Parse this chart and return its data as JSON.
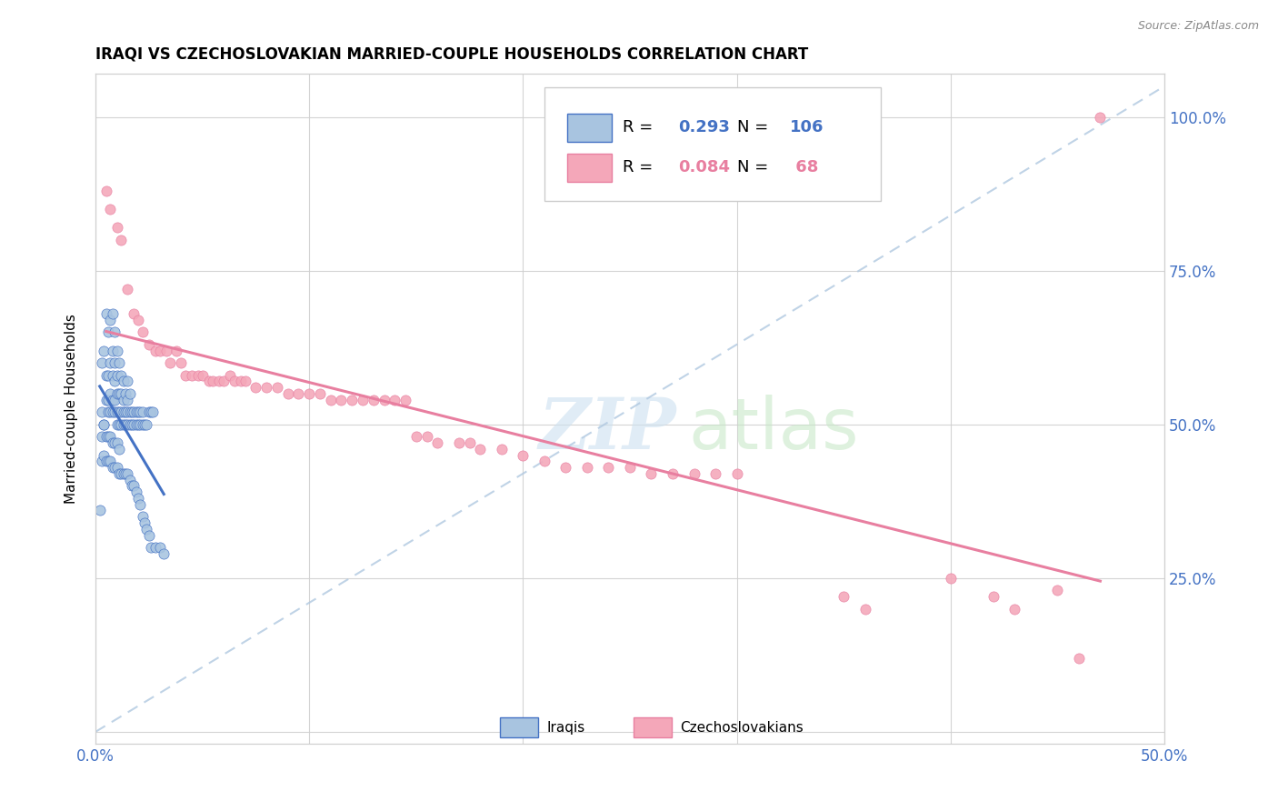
{
  "title": "IRAQI VS CZECHOSLOVAKIAN MARRIED-COUPLE HOUSEHOLDS CORRELATION CHART",
  "source": "Source: ZipAtlas.com",
  "ylabel": "Married-couple Households",
  "xlim": [
    0.0,
    0.5
  ],
  "ylim": [
    -0.02,
    1.07
  ],
  "R_iraqis": 0.293,
  "N_iraqis": 106,
  "R_czech": 0.084,
  "N_czech": 68,
  "color_iraqis": "#a8c4e0",
  "color_czech": "#f4a7b9",
  "line_color_iraqis": "#4472c4",
  "line_color_czech": "#e87fa0",
  "line_color_diagonal": "#b0c8e0",
  "iraqis_x": [
    0.002,
    0.003,
    0.003,
    0.004,
    0.004,
    0.005,
    0.005,
    0.005,
    0.006,
    0.006,
    0.006,
    0.006,
    0.007,
    0.007,
    0.007,
    0.007,
    0.008,
    0.008,
    0.008,
    0.008,
    0.008,
    0.009,
    0.009,
    0.009,
    0.009,
    0.009,
    0.01,
    0.01,
    0.01,
    0.01,
    0.01,
    0.011,
    0.011,
    0.011,
    0.011,
    0.012,
    0.012,
    0.012,
    0.012,
    0.013,
    0.013,
    0.013,
    0.013,
    0.014,
    0.014,
    0.014,
    0.015,
    0.015,
    0.015,
    0.015,
    0.016,
    0.016,
    0.016,
    0.017,
    0.017,
    0.018,
    0.018,
    0.019,
    0.019,
    0.02,
    0.02,
    0.021,
    0.021,
    0.022,
    0.022,
    0.023,
    0.024,
    0.025,
    0.026,
    0.027,
    0.003,
    0.003,
    0.004,
    0.004,
    0.005,
    0.005,
    0.006,
    0.006,
    0.007,
    0.007,
    0.008,
    0.008,
    0.009,
    0.009,
    0.01,
    0.01,
    0.011,
    0.011,
    0.012,
    0.013,
    0.014,
    0.015,
    0.016,
    0.017,
    0.018,
    0.019,
    0.02,
    0.021,
    0.022,
    0.023,
    0.024,
    0.025,
    0.026,
    0.028,
    0.03,
    0.032
  ],
  "iraqis_y": [
    0.36,
    0.52,
    0.6,
    0.5,
    0.62,
    0.54,
    0.58,
    0.68,
    0.52,
    0.54,
    0.58,
    0.65,
    0.52,
    0.55,
    0.6,
    0.67,
    0.52,
    0.54,
    0.58,
    0.62,
    0.68,
    0.52,
    0.54,
    0.57,
    0.6,
    0.65,
    0.5,
    0.52,
    0.55,
    0.58,
    0.62,
    0.5,
    0.52,
    0.55,
    0.6,
    0.5,
    0.52,
    0.55,
    0.58,
    0.5,
    0.52,
    0.54,
    0.57,
    0.5,
    0.52,
    0.55,
    0.5,
    0.52,
    0.54,
    0.57,
    0.5,
    0.52,
    0.55,
    0.5,
    0.52,
    0.5,
    0.52,
    0.5,
    0.52,
    0.5,
    0.52,
    0.5,
    0.52,
    0.5,
    0.52,
    0.5,
    0.5,
    0.52,
    0.52,
    0.52,
    0.44,
    0.48,
    0.45,
    0.5,
    0.44,
    0.48,
    0.44,
    0.48,
    0.44,
    0.48,
    0.43,
    0.47,
    0.43,
    0.47,
    0.43,
    0.47,
    0.42,
    0.46,
    0.42,
    0.42,
    0.42,
    0.42,
    0.41,
    0.4,
    0.4,
    0.39,
    0.38,
    0.37,
    0.35,
    0.34,
    0.33,
    0.32,
    0.3,
    0.3,
    0.3,
    0.29
  ],
  "czech_x": [
    0.005,
    0.007,
    0.01,
    0.012,
    0.015,
    0.018,
    0.02,
    0.022,
    0.025,
    0.028,
    0.03,
    0.033,
    0.035,
    0.038,
    0.04,
    0.042,
    0.045,
    0.048,
    0.05,
    0.053,
    0.055,
    0.058,
    0.06,
    0.063,
    0.065,
    0.068,
    0.07,
    0.075,
    0.08,
    0.085,
    0.09,
    0.095,
    0.1,
    0.105,
    0.11,
    0.115,
    0.12,
    0.125,
    0.13,
    0.135,
    0.14,
    0.145,
    0.15,
    0.155,
    0.16,
    0.17,
    0.175,
    0.18,
    0.19,
    0.2,
    0.21,
    0.22,
    0.23,
    0.24,
    0.25,
    0.26,
    0.27,
    0.28,
    0.29,
    0.3,
    0.35,
    0.36,
    0.4,
    0.42,
    0.43,
    0.45,
    0.46,
    0.47
  ],
  "czech_y": [
    0.88,
    0.85,
    0.82,
    0.8,
    0.72,
    0.68,
    0.67,
    0.65,
    0.63,
    0.62,
    0.62,
    0.62,
    0.6,
    0.62,
    0.6,
    0.58,
    0.58,
    0.58,
    0.58,
    0.57,
    0.57,
    0.57,
    0.57,
    0.58,
    0.57,
    0.57,
    0.57,
    0.56,
    0.56,
    0.56,
    0.55,
    0.55,
    0.55,
    0.55,
    0.54,
    0.54,
    0.54,
    0.54,
    0.54,
    0.54,
    0.54,
    0.54,
    0.48,
    0.48,
    0.47,
    0.47,
    0.47,
    0.46,
    0.46,
    0.45,
    0.44,
    0.43,
    0.43,
    0.43,
    0.43,
    0.42,
    0.42,
    0.42,
    0.42,
    0.42,
    0.22,
    0.2,
    0.25,
    0.22,
    0.2,
    0.23,
    0.12,
    1.0
  ]
}
